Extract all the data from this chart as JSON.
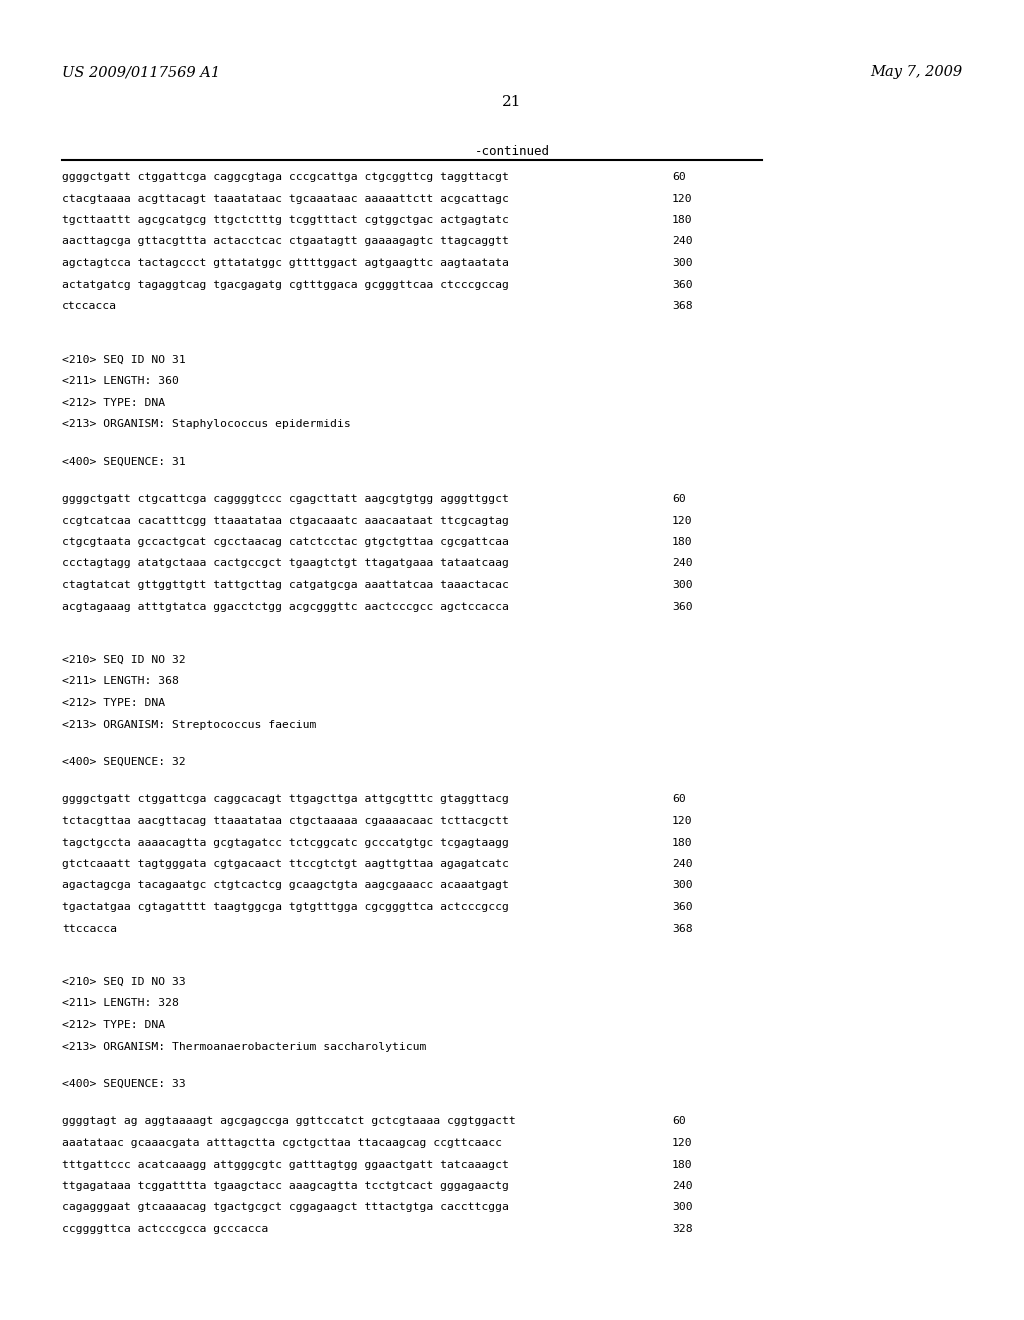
{
  "header_left": "US 2009/0117569 A1",
  "header_right": "May 7, 2009",
  "page_number": "21",
  "continued_label": "-continued",
  "background_color": "#ffffff",
  "text_color": "#000000",
  "lines": [
    {
      "text": "ggggctgatt ctggattcga caggcgtaga cccgcattga ctgcggttcg taggttacgt",
      "num": "60"
    },
    {
      "text": "ctacgtaaaa acgttacagt taaatataac tgcaaataac aaaaattctt acgcattagc",
      "num": "120"
    },
    {
      "text": "tgcttaattt agcgcatgcg ttgctctttg tcggtttact cgtggctgac actgagtatc",
      "num": "180"
    },
    {
      "text": "aacttagcga gttacgttta actacctcac ctgaatagtt gaaaagagtc ttagcaggtt",
      "num": "240"
    },
    {
      "text": "agctagtcca tactagccct gttatatggc gttttggact agtgaagttc aagtaatata",
      "num": "300"
    },
    {
      "text": "actatgatcg tagaggtcag tgacgagatg cgtttggaca gcgggttcaa ctcccgccag",
      "num": "360"
    },
    {
      "text": "ctccacca",
      "num": "368"
    },
    {
      "text": "",
      "num": ""
    },
    {
      "text": "",
      "num": ""
    },
    {
      "text": "<210> SEQ ID NO 31",
      "num": ""
    },
    {
      "text": "<211> LENGTH: 360",
      "num": ""
    },
    {
      "text": "<212> TYPE: DNA",
      "num": ""
    },
    {
      "text": "<213> ORGANISM: Staphylococcus epidermidis",
      "num": ""
    },
    {
      "text": "",
      "num": ""
    },
    {
      "text": "<400> SEQUENCE: 31",
      "num": ""
    },
    {
      "text": "",
      "num": ""
    },
    {
      "text": "ggggctgatt ctgcattcga caggggtccc cgagcttatt aagcgtgtgg agggttggct",
      "num": "60"
    },
    {
      "text": "ccgtcatcaa cacatttcgg ttaaatataa ctgacaaatc aaacaataat ttcgcagtag",
      "num": "120"
    },
    {
      "text": "ctgcgtaata gccactgcat cgcctaacag catctcctac gtgctgttaa cgcgattcaa",
      "num": "180"
    },
    {
      "text": "ccctagtagg atatgctaaa cactgccgct tgaagtctgt ttagatgaaa tataatcaag",
      "num": "240"
    },
    {
      "text": "ctagtatcat gttggttgtt tattgcttag catgatgcga aaattatcaa taaactacac",
      "num": "300"
    },
    {
      "text": "acgtagaaag atttgtatca ggacctctgg acgcgggttc aactcccgcc agctccacca",
      "num": "360"
    },
    {
      "text": "",
      "num": ""
    },
    {
      "text": "",
      "num": ""
    },
    {
      "text": "<210> SEQ ID NO 32",
      "num": ""
    },
    {
      "text": "<211> LENGTH: 368",
      "num": ""
    },
    {
      "text": "<212> TYPE: DNA",
      "num": ""
    },
    {
      "text": "<213> ORGANISM: Streptococcus faecium",
      "num": ""
    },
    {
      "text": "",
      "num": ""
    },
    {
      "text": "<400> SEQUENCE: 32",
      "num": ""
    },
    {
      "text": "",
      "num": ""
    },
    {
      "text": "ggggctgatt ctggattcga caggcacagt ttgagcttga attgcgtttc gtaggttacg",
      "num": "60"
    },
    {
      "text": "tctacgttaa aacgttacag ttaaatataa ctgctaaaaa cgaaaacaac tcttacgctt",
      "num": "120"
    },
    {
      "text": "tagctgccta aaaacagtta gcgtagatcc tctcggcatc gcccatgtgc tcgagtaagg",
      "num": "180"
    },
    {
      "text": "gtctcaaatt tagtgggata cgtgacaact ttccgtctgt aagttgttaa agagatcatc",
      "num": "240"
    },
    {
      "text": "agactagcga tacagaatgc ctgtcactcg gcaagctgta aagcgaaacc acaaatgagt",
      "num": "300"
    },
    {
      "text": "tgactatgaa cgtagatttt taagtggcga tgtgtttgga cgcgggttca actcccgccg",
      "num": "360"
    },
    {
      "text": "ttccacca",
      "num": "368"
    },
    {
      "text": "",
      "num": ""
    },
    {
      "text": "",
      "num": ""
    },
    {
      "text": "<210> SEQ ID NO 33",
      "num": ""
    },
    {
      "text": "<211> LENGTH: 328",
      "num": ""
    },
    {
      "text": "<212> TYPE: DNA",
      "num": ""
    },
    {
      "text": "<213> ORGANISM: Thermoanaerobacterium saccharolyticum",
      "num": ""
    },
    {
      "text": "",
      "num": ""
    },
    {
      "text": "<400> SEQUENCE: 33",
      "num": ""
    },
    {
      "text": "",
      "num": ""
    },
    {
      "text": "ggggtagt ag aggtaaaagt agcgagccga ggttccatct gctcgtaaaa cggtggactt",
      "num": "60"
    },
    {
      "text": "aaatataac gcaaacgata atttagctta cgctgcttaa ttacaagcag ccgttcaacc",
      "num": "120"
    },
    {
      "text": "tttgattccc acatcaaagg attgggcgtc gatttagtgg ggaactgatt tatcaaagct",
      "num": "180"
    },
    {
      "text": "ttgagataaa tcggatttta tgaagctacc aaagcagtta tcctgtcact gggagaactg",
      "num": "240"
    },
    {
      "text": "cagagggaat gtcaaaacag tgactgcgct cggagaagct tttactgtga caccttcgga",
      "num": "300"
    },
    {
      "text": "ccggggttca actcccgcca gcccacca",
      "num": "328"
    }
  ]
}
